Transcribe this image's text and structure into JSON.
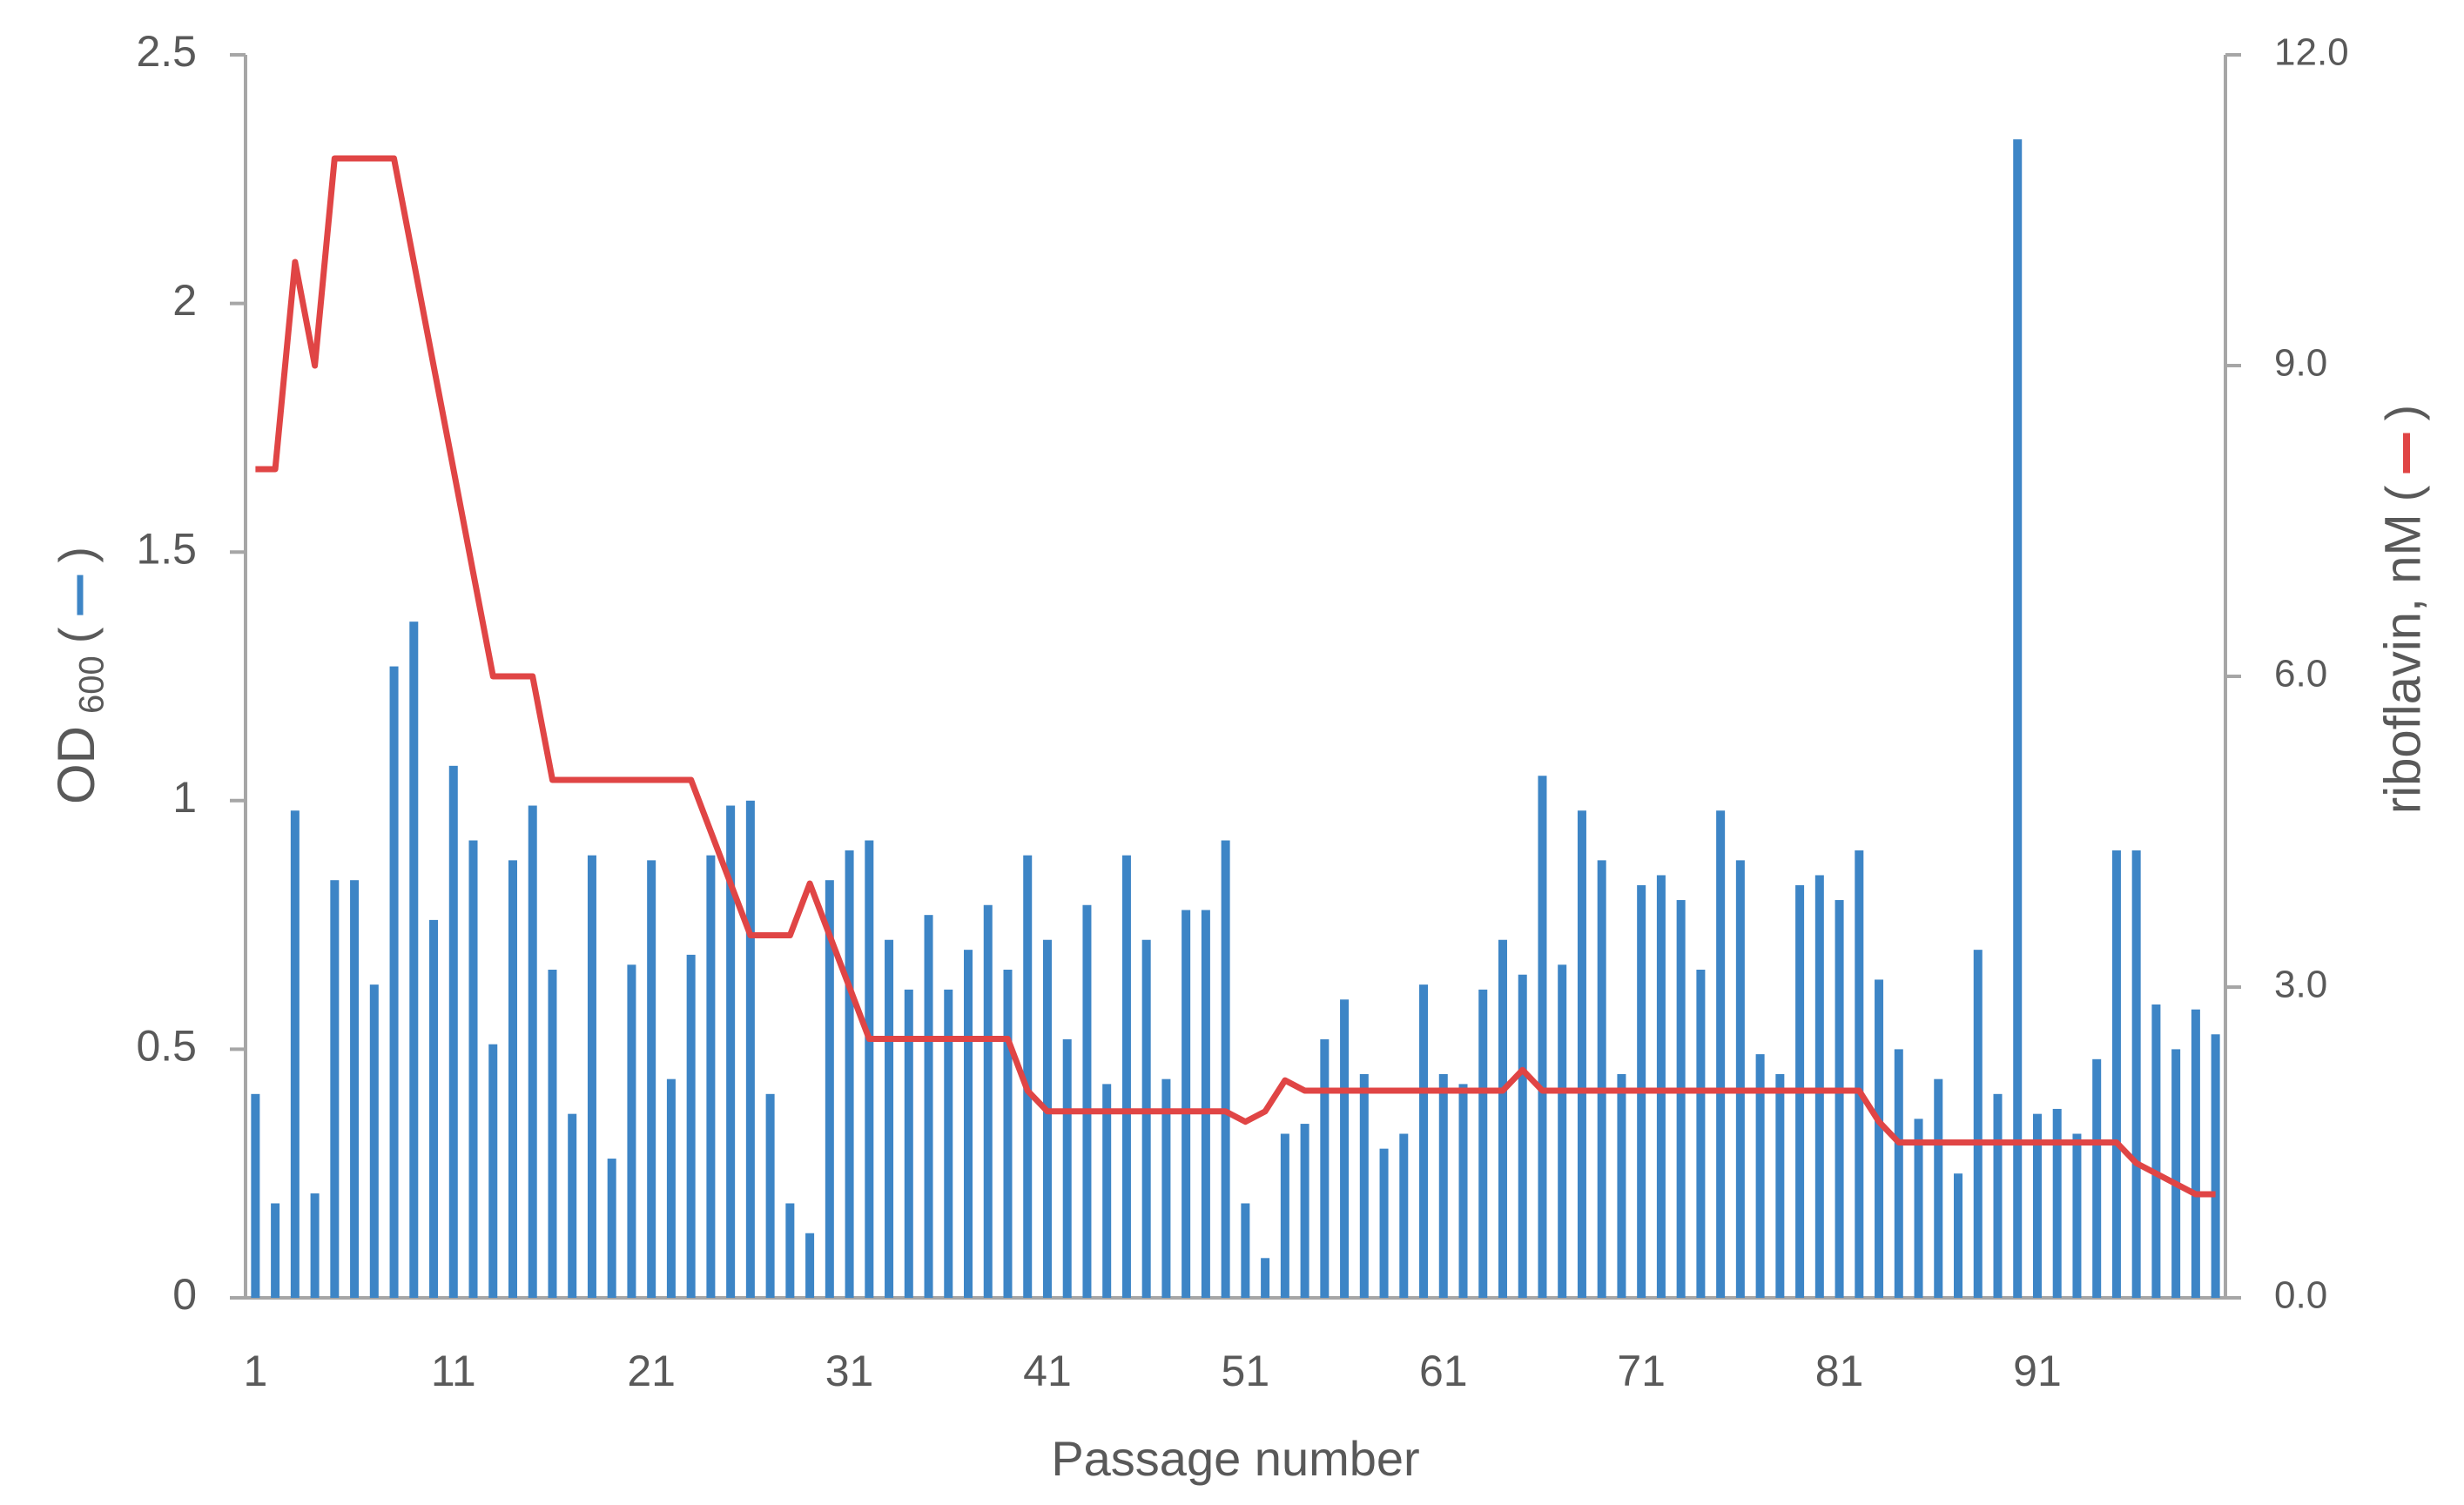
{
  "chart_data": {
    "type": "bar",
    "x_label": "Passage number",
    "y_label": {
      "text": "OD",
      "sub": "600"
    },
    "y2_label": "riboflavin, nM",
    "legend_brackets": [
      "(",
      ")"
    ],
    "x": [
      1,
      2,
      3,
      4,
      5,
      6,
      7,
      8,
      9,
      10,
      11,
      12,
      13,
      14,
      15,
      16,
      17,
      18,
      19,
      20,
      21,
      22,
      23,
      24,
      25,
      26,
      27,
      28,
      29,
      30,
      31,
      32,
      33,
      34,
      35,
      36,
      37,
      38,
      39,
      40,
      41,
      42,
      43,
      44,
      45,
      46,
      47,
      48,
      49,
      50,
      51,
      52,
      53,
      54,
      55,
      56,
      57,
      58,
      59,
      60,
      61,
      62,
      63,
      64,
      65,
      66,
      67,
      68,
      69,
      70,
      71,
      72,
      73,
      74,
      75,
      76,
      77,
      78,
      79,
      80,
      81,
      82,
      83,
      84,
      85,
      86,
      87,
      88,
      89,
      90,
      91,
      92,
      93,
      94,
      95,
      96,
      97,
      98,
      99,
      100
    ],
    "xlim": [
      0.5,
      100.5
    ],
    "xticks": [
      1,
      11,
      21,
      31,
      41,
      51,
      61,
      71,
      81,
      91
    ],
    "ylim": [
      0,
      2.5
    ],
    "yticks": [
      0,
      0.5,
      1,
      1.5,
      2,
      2.5
    ],
    "y2lim": [
      0,
      12
    ],
    "y2ticks": [
      {
        "value": 0,
        "label": "0.0"
      },
      {
        "value": 3,
        "label": "3.0"
      },
      {
        "value": 6,
        "label": "6.0"
      },
      {
        "value": 9,
        "label": "9.0"
      },
      {
        "value": 12,
        "label": "12.0"
      }
    ],
    "series": [
      {
        "type": "bar",
        "color": "#3d85c6",
        "values": [
          0.41,
          0.19,
          0.98,
          0.21,
          0.84,
          0.84,
          0.63,
          1.27,
          1.36,
          0.76,
          1.07,
          0.92,
          0.51,
          0.88,
          0.99,
          0.66,
          0.37,
          0.89,
          0.28,
          0.67,
          0.88,
          0.44,
          0.69,
          0.89,
          0.99,
          1.0,
          0.41,
          0.19,
          0.13,
          0.84,
          0.9,
          0.92,
          0.72,
          0.62,
          0.77,
          0.62,
          0.7,
          0.79,
          0.66,
          0.89,
          0.72,
          0.52,
          0.79,
          0.43,
          0.89,
          0.72,
          0.44,
          0.78,
          0.78,
          0.92,
          0.19,
          0.08,
          0.33,
          0.35,
          0.52,
          0.6,
          0.45,
          0.3,
          0.33,
          0.63,
          0.45,
          0.43,
          0.62,
          0.72,
          0.65,
          1.05,
          0.67,
          0.98,
          0.88,
          0.45,
          0.83,
          0.85,
          0.8,
          0.66,
          0.98,
          0.88,
          0.49,
          0.45,
          0.83,
          0.85,
          0.8,
          0.9,
          0.64,
          0.5,
          0.36,
          0.44,
          0.25,
          0.7,
          0.41,
          2.33,
          0.37,
          0.38,
          0.33,
          0.48,
          0.9,
          0.9,
          0.59,
          0.5,
          0.58,
          0.53
        ]
      },
      {
        "type": "line",
        "axis": "y2",
        "color": "#e04545",
        "values": [
          8,
          8,
          10,
          9,
          11,
          11,
          11,
          11,
          10,
          9,
          8,
          7,
          6,
          6,
          6,
          5,
          5,
          5,
          5,
          5,
          5,
          5,
          5,
          4.5,
          4,
          3.5,
          3.5,
          3.5,
          4,
          3.5,
          3,
          2.5,
          2.5,
          2.5,
          2.5,
          2.5,
          2.5,
          2.5,
          2.5,
          2,
          1.8,
          1.8,
          1.8,
          1.8,
          1.8,
          1.8,
          1.8,
          1.8,
          1.8,
          1.8,
          1.7,
          1.8,
          2.1,
          2,
          2,
          2,
          2,
          2,
          2,
          2,
          2,
          2,
          2,
          2,
          2.2,
          2,
          2,
          2,
          2,
          2,
          2,
          2,
          2,
          2,
          2,
          2,
          2,
          2,
          2,
          2,
          2,
          2,
          1.7,
          1.5,
          1.5,
          1.5,
          1.5,
          1.5,
          1.5,
          1.5,
          1.5,
          1.5,
          1.5,
          1.5,
          1.5,
          1.3,
          1.2,
          1.1,
          1,
          1
        ]
      }
    ]
  }
}
